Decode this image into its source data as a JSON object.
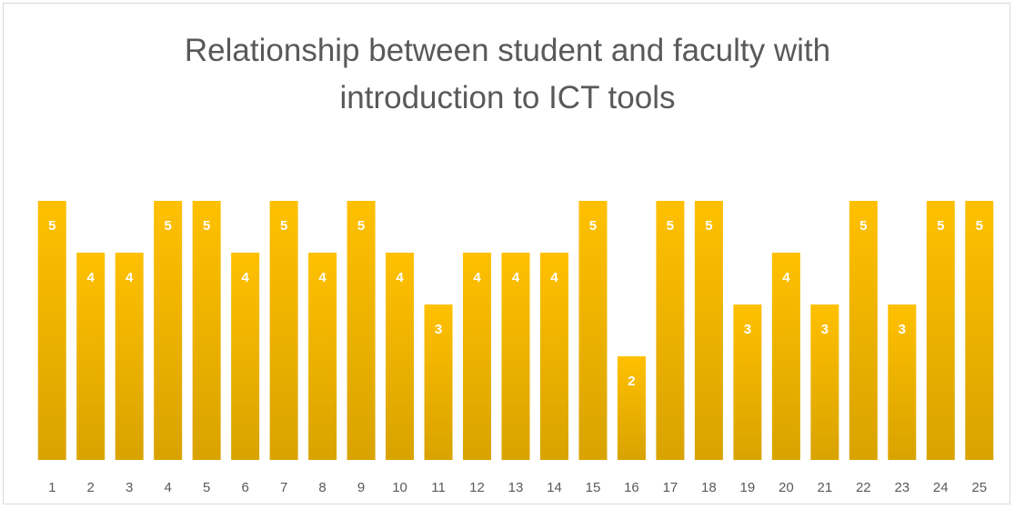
{
  "chart_data": {
    "type": "bar",
    "title": "Relationship between student and faculty with introduction to ICT tools",
    "categories": [
      "1",
      "2",
      "3",
      "4",
      "5",
      "6",
      "7",
      "8",
      "9",
      "10",
      "11",
      "12",
      "13",
      "14",
      "15",
      "16",
      "17",
      "18",
      "19",
      "20",
      "21",
      "22",
      "23",
      "24",
      "25"
    ],
    "values": [
      5,
      4,
      4,
      5,
      5,
      4,
      5,
      4,
      5,
      4,
      3,
      4,
      4,
      4,
      5,
      2,
      5,
      5,
      3,
      4,
      3,
      5,
      3,
      5,
      5
    ],
    "color": "#ffc000",
    "ylim": [
      0,
      5
    ],
    "grid": false
  }
}
